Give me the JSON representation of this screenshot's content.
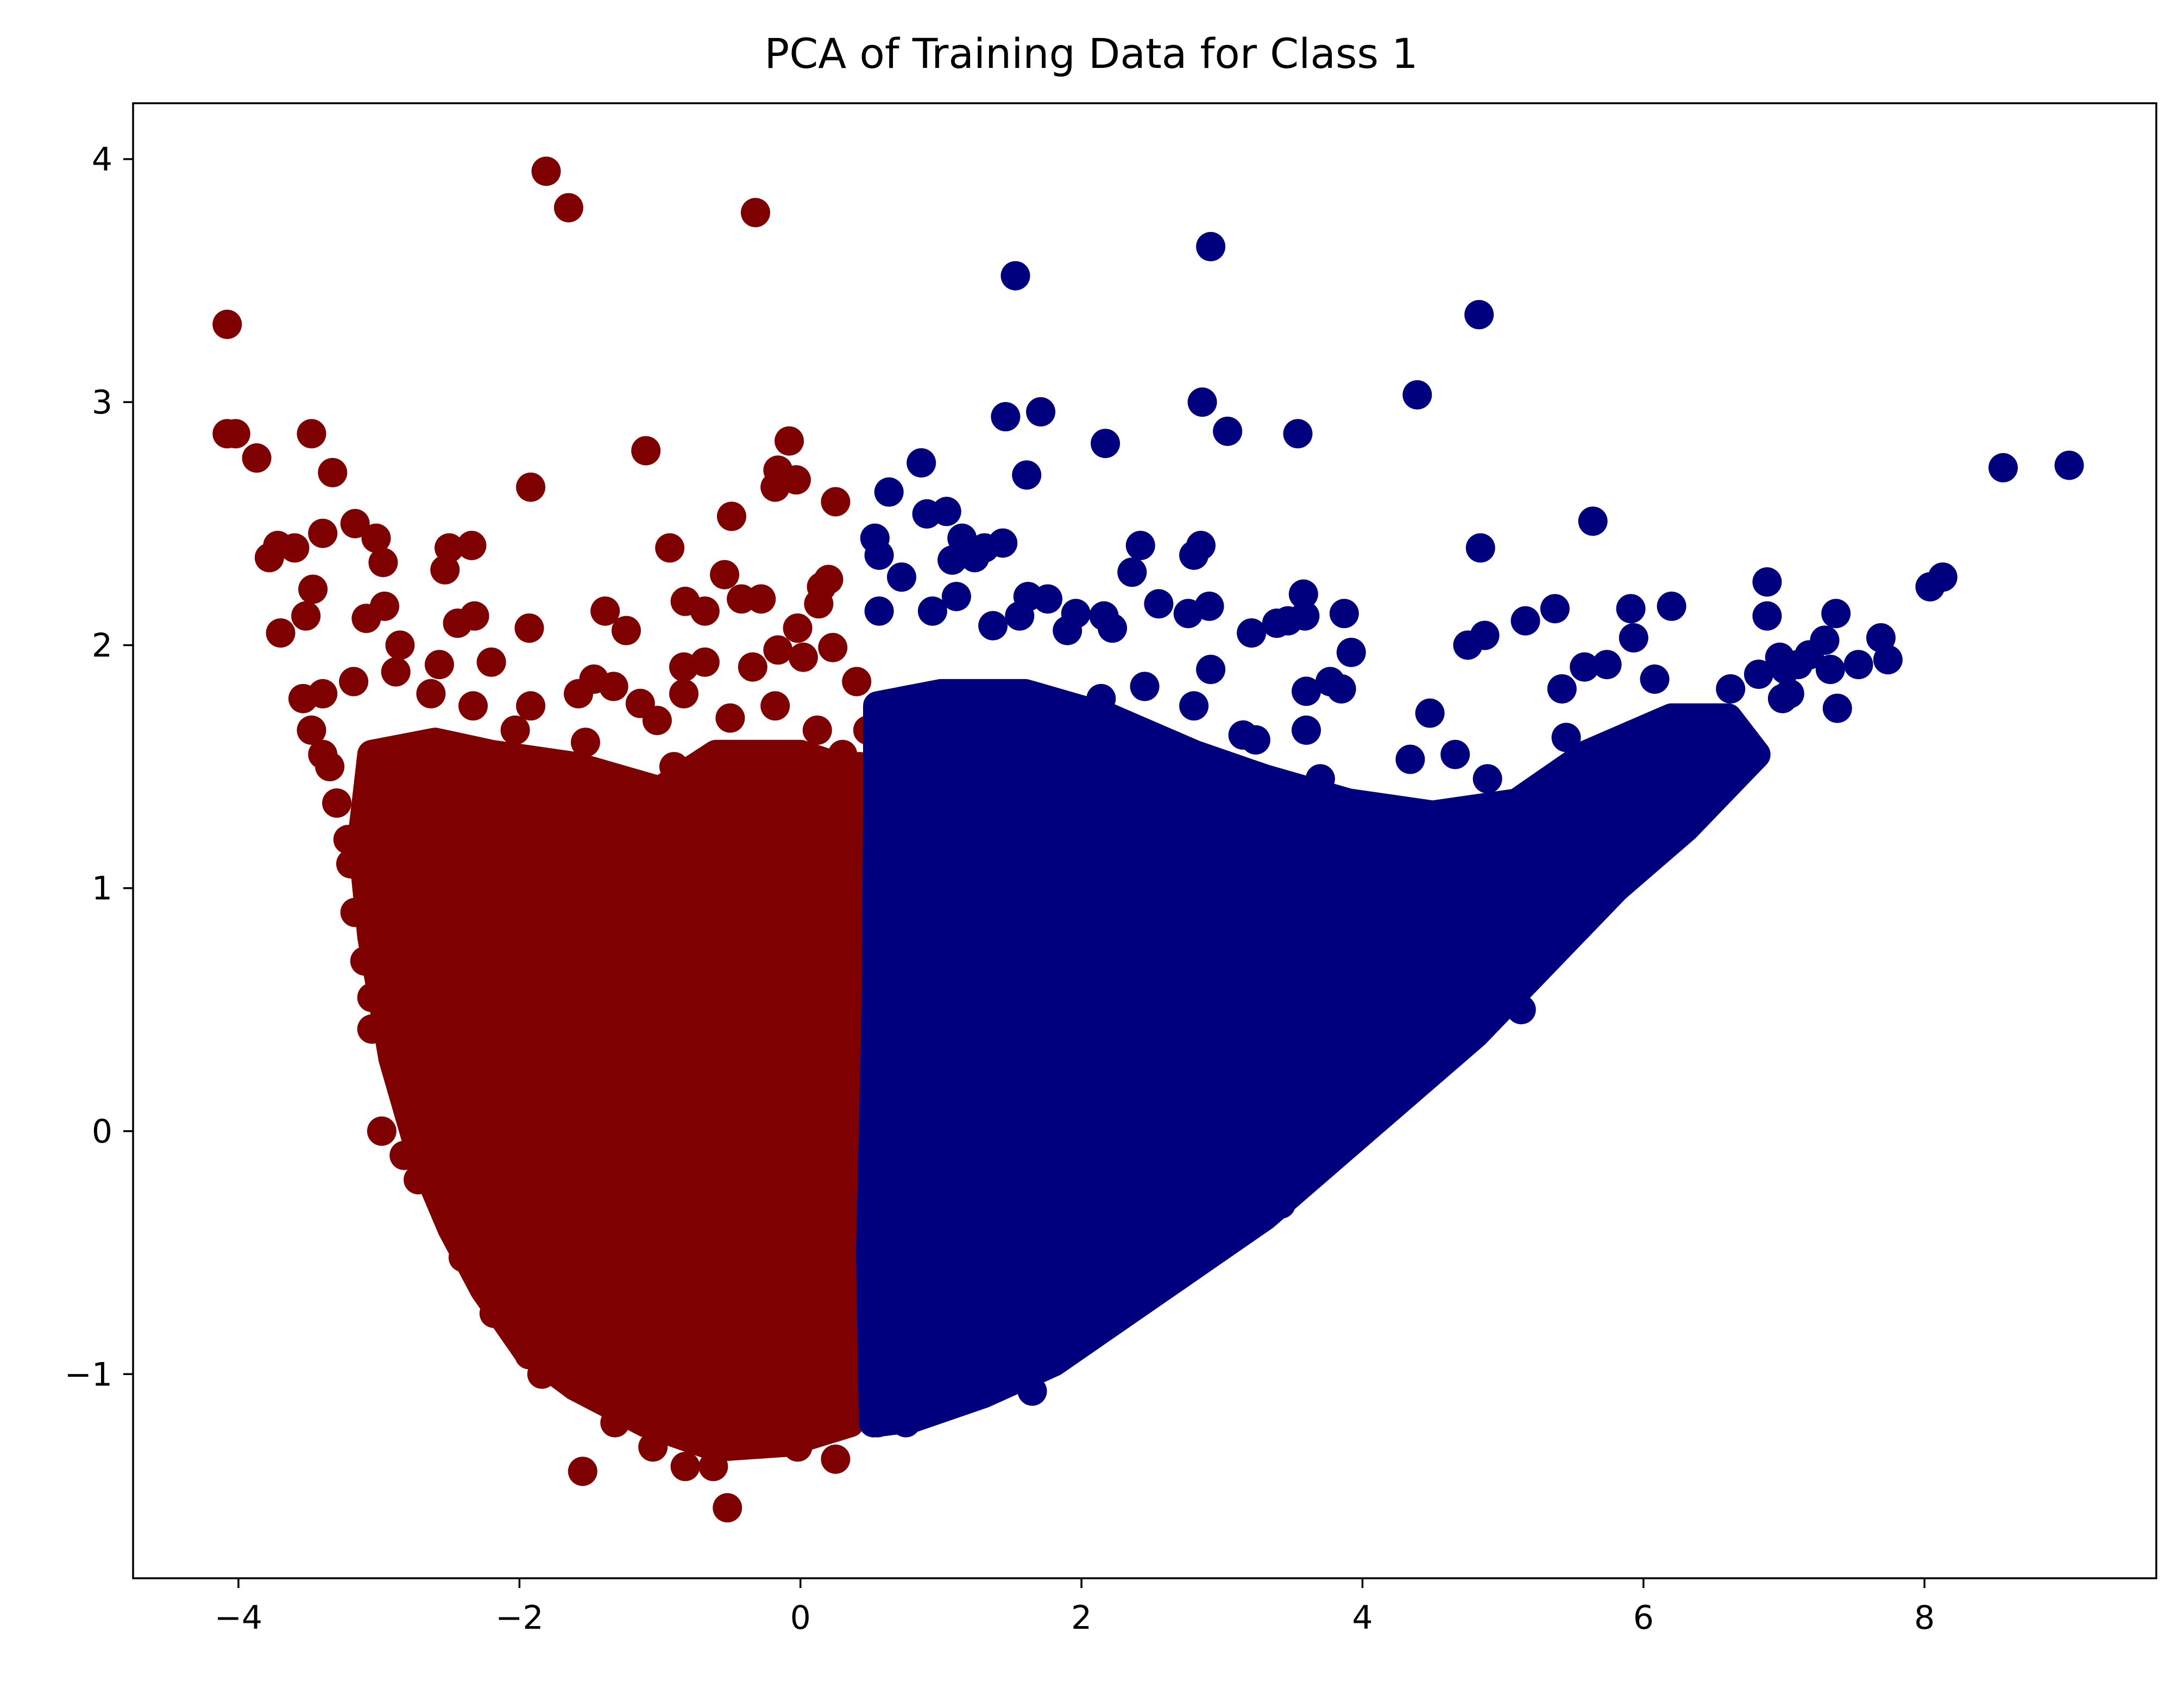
{
  "chart_data": {
    "type": "scatter",
    "title": "PCA of Training Data for Class 1",
    "xlabel": "",
    "ylabel": "",
    "xlim": [
      -4.75,
      9.65
    ],
    "ylim": [
      -1.84,
      4.23
    ],
    "grid": false,
    "legend": "none",
    "x_ticks": [
      {
        "value": -4,
        "label": "−4"
      },
      {
        "value": -2,
        "label": "−2"
      },
      {
        "value": 0,
        "label": "0"
      },
      {
        "value": 2,
        "label": "2"
      },
      {
        "value": 4,
        "label": "4"
      },
      {
        "value": 6,
        "label": "6"
      },
      {
        "value": 8,
        "label": "8"
      }
    ],
    "y_ticks": [
      {
        "value": -1,
        "label": "−1"
      },
      {
        "value": 0,
        "label": "0"
      },
      {
        "value": 1,
        "label": "1"
      },
      {
        "value": 2,
        "label": "2"
      },
      {
        "value": 3,
        "label": "3"
      },
      {
        "value": 4,
        "label": "4"
      }
    ],
    "series": [
      {
        "color": "#7f0000",
        "points": [
          [
            -4.08,
            3.32
          ],
          [
            -4.08,
            2.87
          ],
          [
            -4.02,
            2.87
          ],
          [
            -3.87,
            2.77
          ],
          [
            -3.48,
            2.87
          ],
          [
            -3.33,
            2.71
          ],
          [
            -1.81,
            3.95
          ],
          [
            -1.65,
            3.8
          ],
          [
            -0.32,
            3.78
          ],
          [
            -1.92,
            2.65
          ],
          [
            -1.1,
            2.8
          ],
          [
            -0.08,
            2.84
          ],
          [
            -0.16,
            2.72
          ],
          [
            -0.18,
            2.65
          ],
          [
            -0.03,
            2.68
          ],
          [
            0.25,
            2.59
          ],
          [
            -0.49,
            2.53
          ],
          [
            -0.93,
            2.4
          ],
          [
            -3.17,
            2.5
          ],
          [
            -3.02,
            2.44
          ],
          [
            -2.97,
            2.34
          ],
          [
            -3.4,
            2.46
          ],
          [
            -3.72,
            2.41
          ],
          [
            -3.78,
            2.36
          ],
          [
            -3.6,
            2.4
          ],
          [
            -2.5,
            2.4
          ],
          [
            -2.34,
            2.41
          ],
          [
            -2.53,
            2.31
          ],
          [
            -3.47,
            2.23
          ],
          [
            -3.52,
            2.12
          ],
          [
            -3.7,
            2.05
          ],
          [
            -2.96,
            2.16
          ],
          [
            -3.09,
            2.11
          ],
          [
            -2.32,
            2.12
          ],
          [
            -2.44,
            2.09
          ],
          [
            -1.93,
            2.07
          ],
          [
            -1.39,
            2.14
          ],
          [
            -1.24,
            2.06
          ],
          [
            -0.82,
            2.18
          ],
          [
            -0.54,
            2.29
          ],
          [
            -0.42,
            2.19
          ],
          [
            -0.68,
            2.14
          ],
          [
            -0.28,
            2.19
          ],
          [
            0.15,
            2.24
          ],
          [
            0.2,
            2.27
          ],
          [
            0.13,
            2.17
          ],
          [
            -0.02,
            2.07
          ],
          [
            -0.16,
            1.98
          ],
          [
            0.02,
            1.95
          ],
          [
            0.23,
            1.99
          ],
          [
            -2.85,
            2.0
          ],
          [
            -2.2,
            1.93
          ],
          [
            -2.57,
            1.92
          ],
          [
            -1.47,
            1.86
          ],
          [
            -1.33,
            1.83
          ],
          [
            -0.83,
            1.91
          ],
          [
            -0.68,
            1.93
          ],
          [
            -1.14,
            1.76
          ],
          [
            -0.34,
            1.91
          ],
          [
            -0.83,
            1.8
          ],
          [
            -1.02,
            1.69
          ],
          [
            -0.9,
            1.5
          ],
          [
            -1.58,
            1.8
          ],
          [
            -1.92,
            1.75
          ],
          [
            -2.88,
            1.89
          ],
          [
            -3.18,
            1.85
          ],
          [
            -3.4,
            1.8
          ],
          [
            -3.54,
            1.78
          ],
          [
            -2.63,
            1.8
          ],
          [
            -2.33,
            1.75
          ],
          [
            -3.48,
            1.65
          ],
          [
            -2.03,
            1.65
          ],
          [
            -1.53,
            1.6
          ],
          [
            -0.5,
            1.7
          ],
          [
            -0.18,
            1.75
          ],
          [
            0.4,
            1.85
          ],
          [
            0.12,
            1.65
          ],
          [
            -1.35,
            1.42
          ],
          [
            -1.47,
            1.38
          ],
          [
            -0.6,
            1.52
          ],
          [
            -1.55,
            -1.4
          ],
          [
            -0.52,
            -1.55
          ],
          [
            -0.62,
            -1.38
          ],
          [
            -0.82,
            -1.38
          ],
          [
            0.25,
            -1.35
          ],
          [
            -0.02,
            -1.3
          ],
          [
            -1.05,
            -1.3
          ],
          [
            -1.32,
            -1.2
          ],
          [
            -1.84,
            -1.0
          ],
          [
            -1.68,
            -0.97
          ],
          [
            -1.93,
            -0.92
          ],
          [
            -2.18,
            -0.75
          ],
          [
            -2.12,
            -0.7
          ],
          [
            -2.4,
            -0.52
          ],
          [
            -2.72,
            -0.2
          ],
          [
            -2.82,
            -0.1
          ],
          [
            -2.98,
            0.0
          ],
          [
            -3.05,
            0.42
          ],
          [
            -2.82,
            0.57
          ],
          [
            -3.05,
            0.55
          ],
          [
            -3.1,
            0.7
          ],
          [
            -3.17,
            0.9
          ],
          [
            -3.2,
            1.1
          ],
          [
            -3.22,
            1.2
          ],
          [
            -3.3,
            1.35
          ],
          [
            -3.35,
            1.5
          ],
          [
            -3.4,
            1.55
          ],
          [
            0.46,
            0.44
          ],
          [
            0.53,
            0.9
          ],
          [
            0.54,
            1.2
          ],
          [
            0.52,
            0.61
          ],
          [
            0.5,
            -0.6
          ],
          [
            0.54,
            0.0
          ],
          [
            0.5,
            -0.8
          ],
          [
            0.46,
            -1.05
          ],
          [
            0.4,
            -1.1
          ],
          [
            0.42,
            1.5
          ],
          [
            0.3,
            1.55
          ],
          [
            0.48,
            1.65
          ]
        ],
        "regions": [
          [
            [
              -3.05,
              1.55
            ],
            [
              -2.6,
              1.6
            ],
            [
              -2.2,
              1.55
            ],
            [
              -1.6,
              1.5
            ],
            [
              -1.0,
              1.4
            ],
            [
              -0.6,
              1.55
            ],
            [
              0.0,
              1.55
            ],
            [
              0.52,
              1.45
            ],
            [
              0.56,
              0.6
            ],
            [
              0.55,
              -0.3
            ],
            [
              0.52,
              -1.0
            ],
            [
              0.35,
              -1.2
            ],
            [
              -0.1,
              -1.28
            ],
            [
              -0.6,
              -1.3
            ],
            [
              -1.1,
              -1.2
            ],
            [
              -1.6,
              -1.05
            ],
            [
              -1.95,
              -0.9
            ],
            [
              -2.25,
              -0.65
            ],
            [
              -2.48,
              -0.4
            ],
            [
              -2.7,
              -0.1
            ],
            [
              -2.9,
              0.3
            ],
            [
              -3.05,
              0.8
            ],
            [
              -3.12,
              1.2
            ]
          ]
        ]
      },
      {
        "color": "#00007f",
        "points": [
          [
            1.53,
            3.52
          ],
          [
            2.92,
            3.64
          ],
          [
            4.83,
            3.36
          ],
          [
            4.39,
            3.03
          ],
          [
            2.86,
            3.0
          ],
          [
            3.04,
            2.88
          ],
          [
            3.54,
            2.87
          ],
          [
            1.46,
            2.94
          ],
          [
            1.71,
            2.96
          ],
          [
            2.17,
            2.83
          ],
          [
            0.86,
            2.75
          ],
          [
            1.61,
            2.7
          ],
          [
            0.63,
            2.63
          ],
          [
            0.9,
            2.54
          ],
          [
            1.04,
            2.55
          ],
          [
            8.56,
            2.73
          ],
          [
            9.03,
            2.74
          ],
          [
            5.64,
            2.51
          ],
          [
            2.42,
            2.41
          ],
          [
            2.85,
            2.41
          ],
          [
            2.8,
            2.37
          ],
          [
            4.84,
            2.4
          ],
          [
            0.53,
            2.44
          ],
          [
            0.56,
            2.37
          ],
          [
            0.72,
            2.28
          ],
          [
            1.15,
            2.44
          ],
          [
            1.31,
            2.4
          ],
          [
            1.44,
            2.42
          ],
          [
            1.08,
            2.35
          ],
          [
            1.24,
            2.36
          ],
          [
            1.62,
            2.2
          ],
          [
            1.76,
            2.19
          ],
          [
            2.36,
            2.3
          ],
          [
            2.55,
            2.17
          ],
          [
            3.58,
            2.21
          ],
          [
            8.13,
            2.28
          ],
          [
            8.04,
            2.24
          ],
          [
            6.88,
            2.26
          ],
          [
            6.2,
            2.16
          ],
          [
            5.37,
            2.15
          ],
          [
            5.16,
            2.1
          ],
          [
            5.91,
            2.15
          ],
          [
            6.88,
            2.12
          ],
          [
            7.37,
            2.13
          ],
          [
            3.87,
            2.13
          ],
          [
            3.39,
            2.09
          ],
          [
            3.47,
            2.1
          ],
          [
            3.59,
            2.12
          ],
          [
            3.21,
            2.05
          ],
          [
            2.91,
            2.16
          ],
          [
            2.76,
            2.13
          ],
          [
            2.16,
            2.12
          ],
          [
            2.22,
            2.07
          ],
          [
            1.96,
            2.13
          ],
          [
            1.56,
            2.12
          ],
          [
            1.37,
            2.08
          ],
          [
            1.11,
            2.2
          ],
          [
            0.94,
            2.14
          ],
          [
            0.56,
            2.14
          ],
          [
            4.75,
            2.0
          ],
          [
            4.87,
            2.04
          ],
          [
            5.93,
            2.03
          ],
          [
            7.69,
            2.03
          ],
          [
            7.29,
            2.02
          ],
          [
            7.74,
            1.94
          ],
          [
            7.53,
            1.92
          ],
          [
            7.18,
            1.96
          ],
          [
            6.97,
            1.95
          ],
          [
            7.1,
            1.92
          ],
          [
            7.01,
            1.9
          ],
          [
            7.04,
            1.8
          ],
          [
            6.99,
            1.78
          ],
          [
            7.33,
            1.9
          ],
          [
            7.38,
            1.74
          ],
          [
            6.82,
            1.88
          ],
          [
            6.62,
            1.82
          ],
          [
            6.08,
            1.86
          ],
          [
            5.74,
            1.92
          ],
          [
            5.58,
            1.91
          ],
          [
            5.42,
            1.82
          ],
          [
            3.77,
            1.85
          ],
          [
            3.6,
            1.81
          ],
          [
            3.85,
            1.82
          ],
          [
            3.92,
            1.97
          ],
          [
            4.48,
            1.72
          ],
          [
            5.45,
            1.62
          ],
          [
            4.89,
            1.45
          ],
          [
            4.66,
            1.55
          ],
          [
            4.34,
            1.53
          ],
          [
            6.17,
            1.24
          ],
          [
            6.0,
            1.3
          ],
          [
            5.13,
            0.5
          ],
          [
            4.9,
            0.5
          ],
          [
            4.49,
            0.4
          ],
          [
            4.18,
            0.3
          ],
          [
            3.99,
            0.05
          ],
          [
            3.42,
            -0.3
          ],
          [
            2.9,
            -0.5
          ],
          [
            2.41,
            -0.7
          ],
          [
            1.85,
            -0.9
          ],
          [
            1.4,
            -1.05
          ],
          [
            0.75,
            -1.2
          ],
          [
            0.55,
            -1.2
          ],
          [
            1.1,
            -1.1
          ],
          [
            1.65,
            -1.07
          ],
          [
            3.24,
            1.61
          ],
          [
            3.15,
            1.63
          ],
          [
            2.36,
            1.63
          ],
          [
            1.99,
            1.68
          ],
          [
            2.65,
            1.47
          ],
          [
            3.7,
            1.45
          ],
          [
            3.6,
            1.65
          ],
          [
            1.9,
            2.06
          ],
          [
            2.92,
            1.9
          ],
          [
            2.14,
            1.78
          ],
          [
            2.45,
            1.83
          ],
          [
            2.8,
            1.75
          ],
          [
            1.2,
            1.75
          ]
        ],
        "regions": [
          [
            [
              0.55,
              1.75
            ],
            [
              1.0,
              1.8
            ],
            [
              1.6,
              1.8
            ],
            [
              2.2,
              1.7
            ],
            [
              2.8,
              1.55
            ],
            [
              3.3,
              1.45
            ],
            [
              3.9,
              1.35
            ],
            [
              4.5,
              1.3
            ],
            [
              5.1,
              1.35
            ],
            [
              5.6,
              1.55
            ],
            [
              6.2,
              1.7
            ],
            [
              6.6,
              1.7
            ],
            [
              6.8,
              1.55
            ],
            [
              6.3,
              1.25
            ],
            [
              5.8,
              1.0
            ],
            [
              5.3,
              0.7
            ],
            [
              4.8,
              0.4
            ],
            [
              4.3,
              0.15
            ],
            [
              3.8,
              -0.1
            ],
            [
              3.3,
              -0.35
            ],
            [
              2.8,
              -0.55
            ],
            [
              2.3,
              -0.75
            ],
            [
              1.8,
              -0.95
            ],
            [
              1.3,
              -1.08
            ],
            [
              0.8,
              -1.18
            ],
            [
              0.52,
              -1.2
            ],
            [
              0.5,
              -0.5
            ],
            [
              0.54,
              0.5
            ],
            [
              0.55,
              1.3
            ]
          ]
        ]
      }
    ]
  }
}
